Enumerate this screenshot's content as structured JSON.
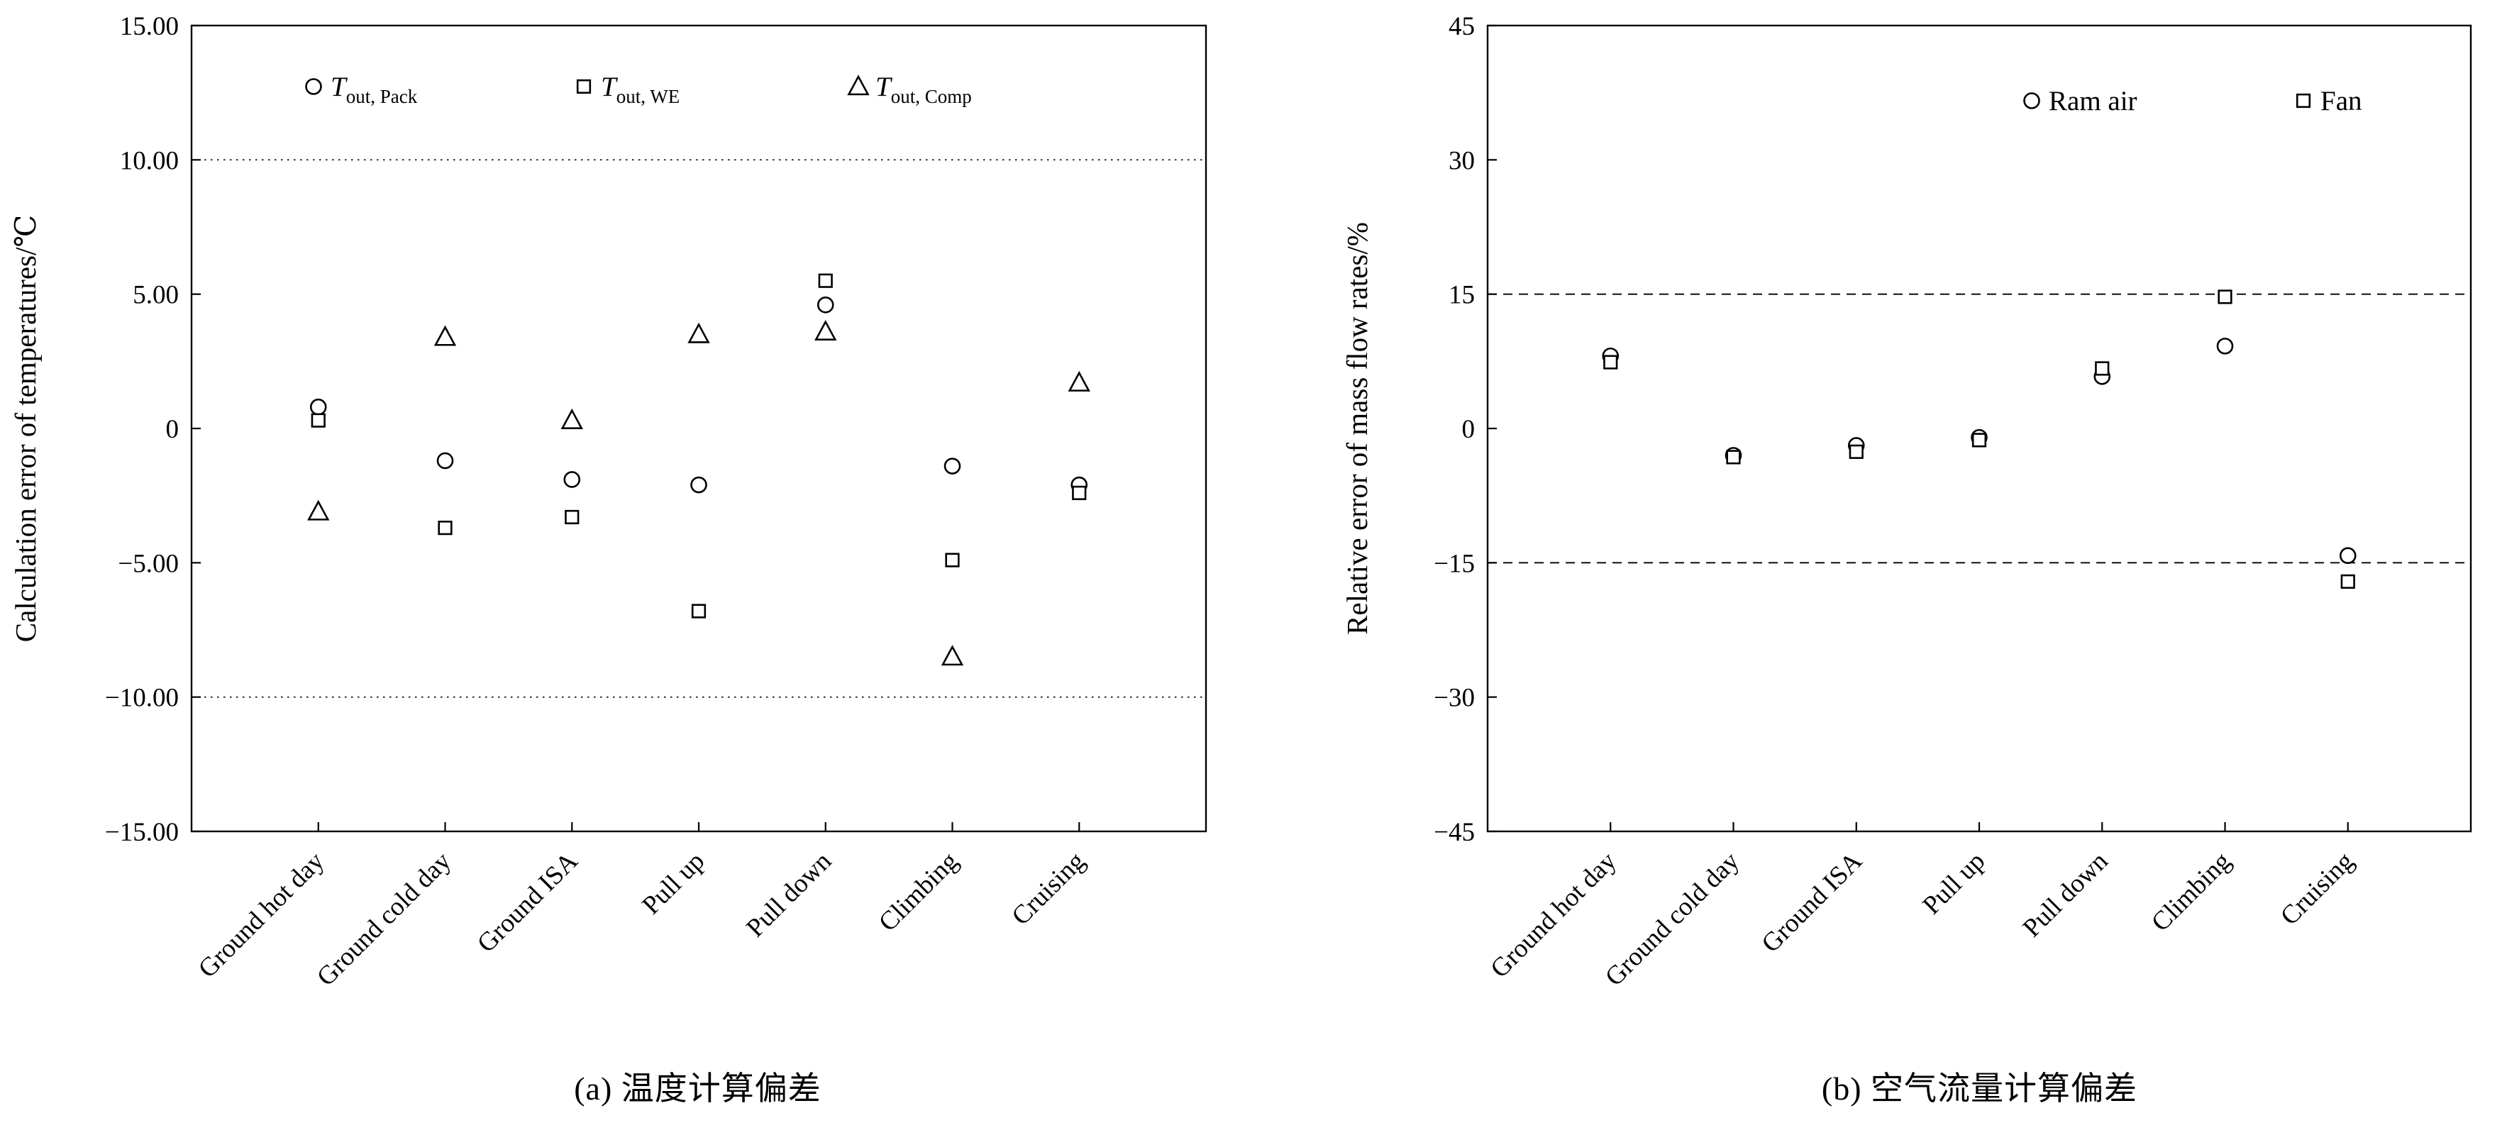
{
  "colors": {
    "axis": "#000000",
    "marker_stroke": "#000000",
    "marker_fill": "#ffffff"
  },
  "chart_data": [
    {
      "id": "a",
      "type": "scatter",
      "caption": "(a) 温度计算偏差",
      "ylabel": "Calculation error of temperatures/℃",
      "ylim": [
        -15,
        15
      ],
      "yticks": [
        15,
        10,
        5,
        0,
        -5,
        -10,
        -15
      ],
      "ytick_labels": [
        "15.00",
        "10.00",
        "5.00",
        "0",
        "−5.00",
        "−10.00",
        "−15.00"
      ],
      "ref_lines": [
        10,
        -10
      ],
      "ref_style": "dotted",
      "grid": false,
      "legend_position": "top-inside",
      "categories": [
        "Ground hot day",
        "Ground cold day",
        "Ground ISA",
        "Pull up",
        "Pull down",
        "Climbing",
        "Cruising"
      ],
      "series": [
        {
          "name": "T_out,Pack",
          "marker": "circle",
          "legend_main": "T",
          "legend_sub": "out, Pack",
          "values": [
            0.8,
            -1.2,
            -1.9,
            -2.1,
            4.6,
            -1.4,
            -2.1
          ]
        },
        {
          "name": "T_out,WE",
          "marker": "square",
          "legend_main": "T",
          "legend_sub": "out, WE",
          "values": [
            0.3,
            -3.7,
            -3.3,
            -6.8,
            5.5,
            -4.9,
            -2.4
          ]
        },
        {
          "name": "T_out,Comp",
          "marker": "triangle",
          "legend_main": "T",
          "legend_sub": "out, Comp",
          "values": [
            -3.1,
            3.4,
            0.3,
            3.5,
            3.6,
            -8.5,
            1.7
          ]
        }
      ]
    },
    {
      "id": "b",
      "type": "scatter",
      "caption": "(b) 空气流量计算偏差",
      "ylabel": "Relative error of mass flow rates/%",
      "ylim": [
        -45,
        45
      ],
      "yticks": [
        45,
        30,
        15,
        0,
        -15,
        -30,
        -45
      ],
      "ytick_labels": [
        "45",
        "30",
        "15",
        "0",
        "−15",
        "−30",
        "−45"
      ],
      "ref_lines": [
        15,
        -15
      ],
      "ref_style": "dashed",
      "grid": false,
      "legend_position": "top-right-inside",
      "categories": [
        "Ground hot day",
        "Ground cold day",
        "Ground ISA",
        "Pull up",
        "Pull down",
        "Climbing",
        "Cruising"
      ],
      "series": [
        {
          "name": "Ram air",
          "marker": "circle",
          "legend_main": "Ram air",
          "legend_sub": "",
          "values": [
            8.1,
            -3.0,
            -1.9,
            -1.0,
            5.8,
            9.2,
            -14.2
          ]
        },
        {
          "name": "Fan",
          "marker": "square",
          "legend_main": "Fan",
          "legend_sub": "",
          "values": [
            7.4,
            -3.2,
            -2.6,
            -1.3,
            6.7,
            14.7,
            -17.1
          ]
        }
      ]
    }
  ]
}
